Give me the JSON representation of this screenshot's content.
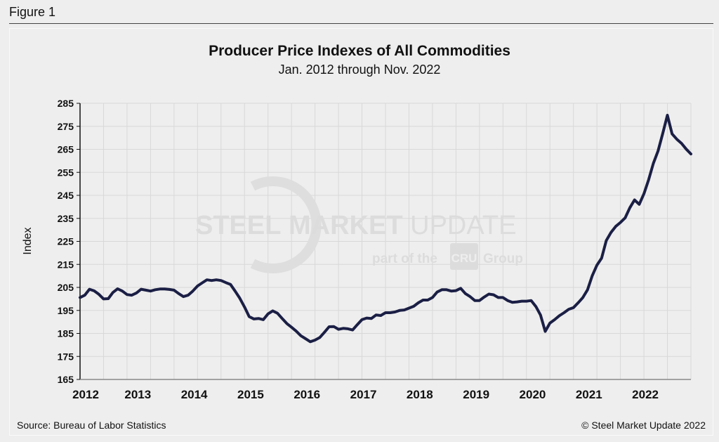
{
  "figure_label": "Figure 1",
  "source": "Source: Bureau of Labor Statistics",
  "copyright": "© Steel Market Update 2022",
  "watermark": {
    "line1_bold": "STEEL",
    "line1_mid": "MARKET",
    "line1_light": "UPDATE",
    "line2_pre": "part of the",
    "line2_badge": "CRU",
    "line2_post": "Group"
  },
  "colors": {
    "line": "#1b1f45",
    "background": "#eeeeee",
    "grid": "#d8d8d8"
  },
  "chart_data": {
    "type": "line",
    "title": "Producer Price Indexes of All Commodities",
    "subtitle": "Jan. 2012 through Nov. 2022",
    "xlabel": "",
    "ylabel": "Index",
    "ylim": [
      165,
      285
    ],
    "yticks": [
      285,
      275,
      265,
      255,
      245,
      235,
      225,
      215,
      205,
      195,
      185,
      175,
      165
    ],
    "xtick_labels": [
      "2012",
      "2013",
      "2014",
      "2015",
      "2016",
      "2017",
      "2018",
      "2019",
      "2020",
      "2021",
      "2022"
    ],
    "x_start": "2012-01",
    "x_end": "2022-11",
    "frequency": "monthly",
    "grid": true,
    "series": [
      {
        "values": [
          200.6,
          201.6,
          204.2,
          203.5,
          202.0,
          200.0,
          200.1,
          202.8,
          204.4,
          203.4,
          201.9,
          201.6,
          202.6,
          204.2,
          203.8,
          203.4,
          204.0,
          204.3,
          204.3,
          204.1,
          203.8,
          202.3,
          201.0,
          201.6,
          203.4,
          205.6,
          207.0,
          208.3,
          208.0,
          208.3,
          208.0,
          207.1,
          206.3,
          203.4,
          200.3,
          196.5,
          192.3,
          191.3,
          191.5,
          191.0,
          193.5,
          194.8,
          193.8,
          191.5,
          189.3,
          187.7,
          186.0,
          184.0,
          182.7,
          181.4,
          182.1,
          183.2,
          185.5,
          187.9,
          188.0,
          186.8,
          187.2,
          187.0,
          186.5,
          188.8,
          191.0,
          191.7,
          191.5,
          193.0,
          192.8,
          194.0,
          194.0,
          194.3,
          195.0,
          195.2,
          196.0,
          196.8,
          198.3,
          199.5,
          199.5,
          200.6,
          203.0,
          204.0,
          204.0,
          203.4,
          203.6,
          204.6,
          202.3,
          201.0,
          199.3,
          199.3,
          200.8,
          202.1,
          201.8,
          200.6,
          200.6,
          199.3,
          198.5,
          198.7,
          199.0,
          199.0,
          199.3,
          196.7,
          193.0,
          185.9,
          189.5,
          191.0,
          192.7,
          194.0,
          195.5,
          196.2,
          198.3,
          200.6,
          204.0,
          210.1,
          214.7,
          217.7,
          225.4,
          228.9,
          231.5,
          233.2,
          235.2,
          239.6,
          243.0,
          241.1,
          245.7,
          251.8,
          258.9,
          264.3,
          271.8,
          279.8,
          271.7,
          269.4,
          267.6,
          265.1,
          263.0
        ]
      }
    ]
  }
}
